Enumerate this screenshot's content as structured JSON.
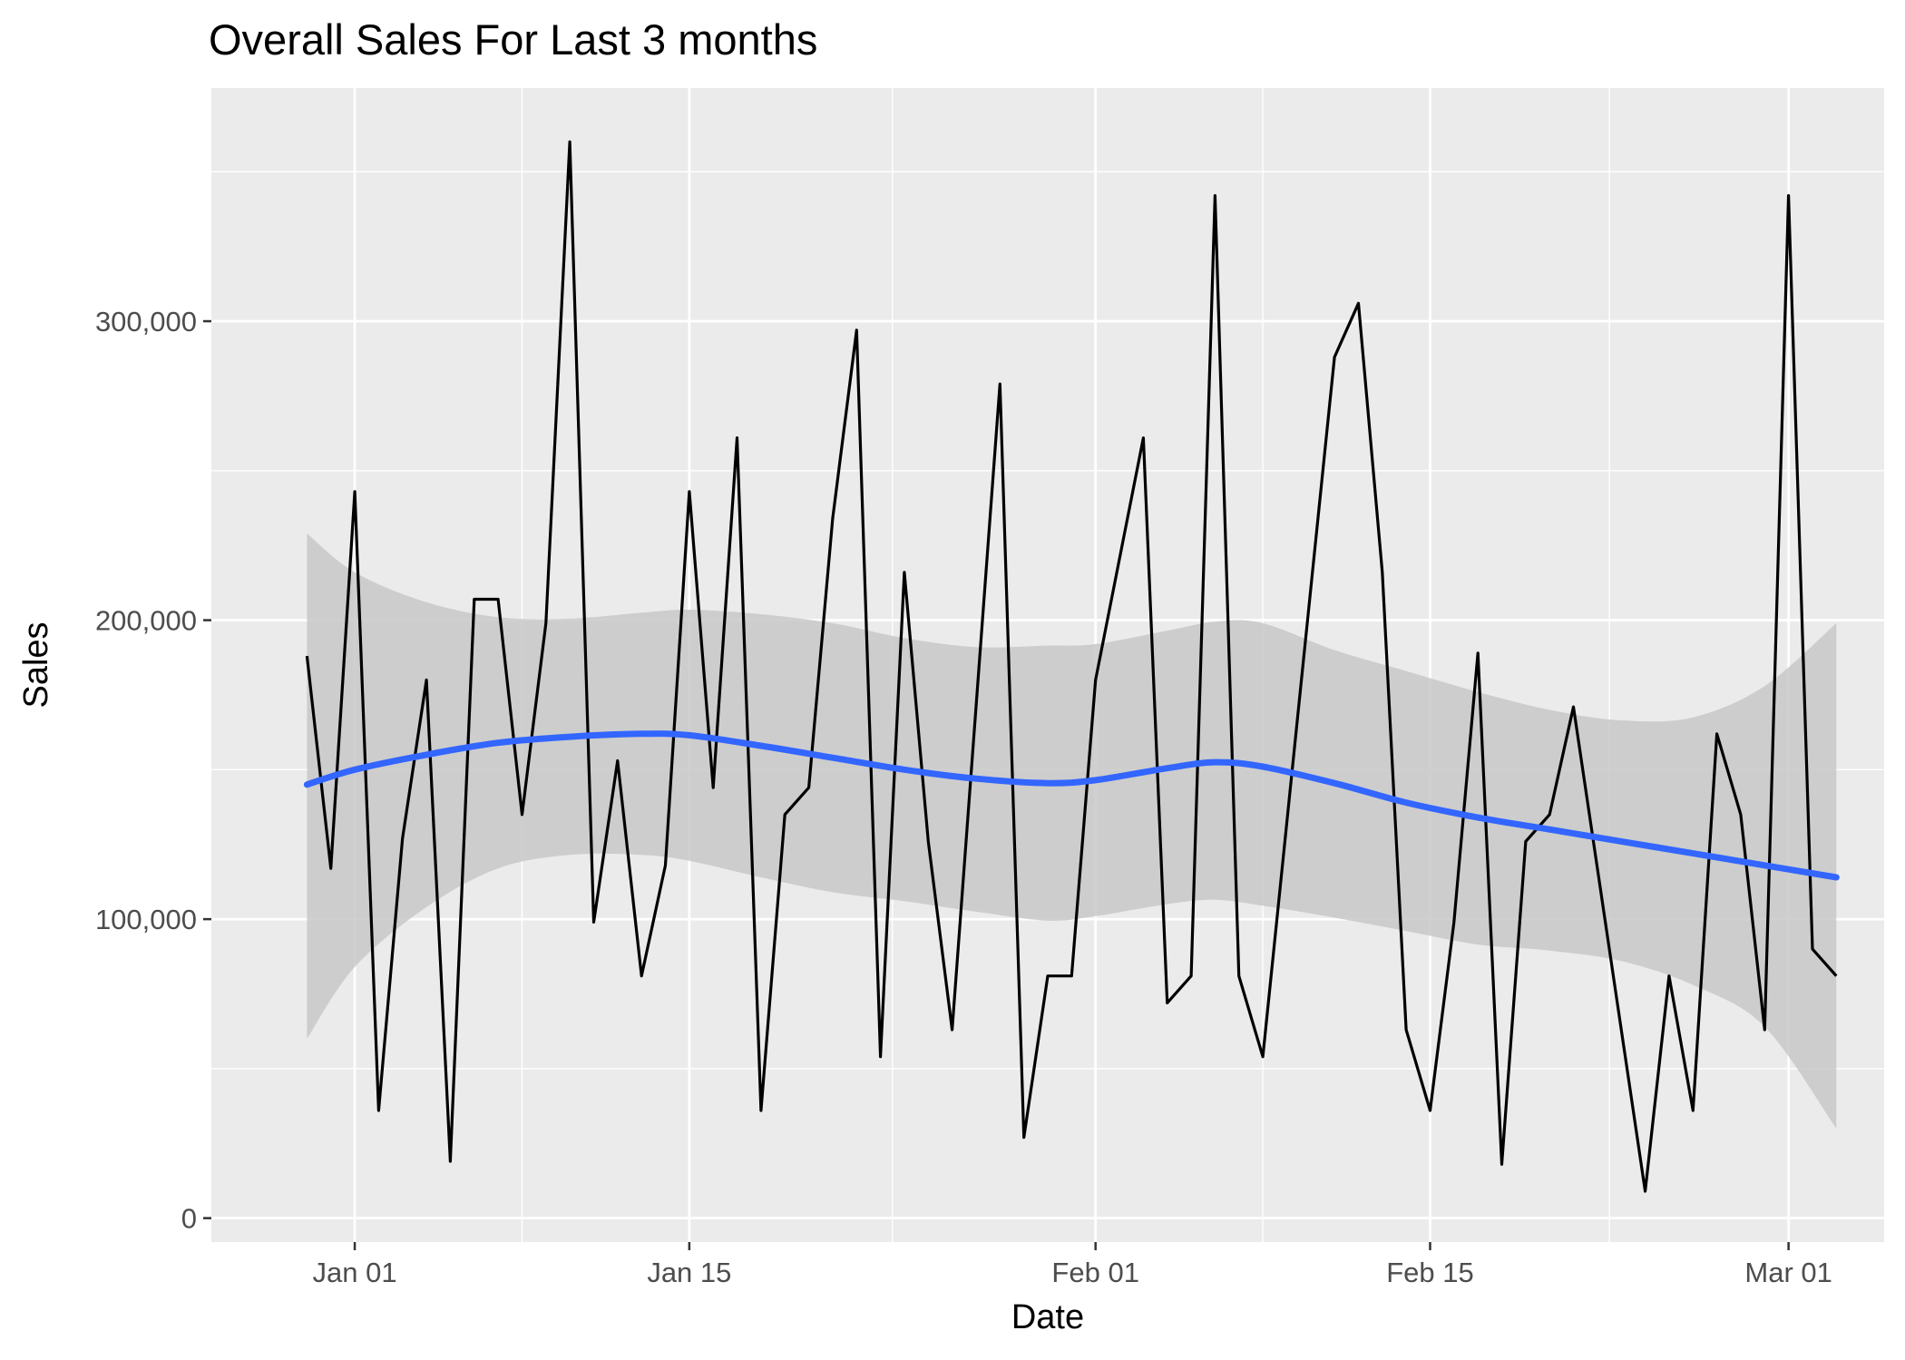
{
  "chart_data": {
    "type": "line",
    "title": "Overall Sales For Last 3 months",
    "xlabel": "Date",
    "ylabel": "Sales",
    "x_ticks": [
      {
        "date": "2020-01-01",
        "label": "Jan 01"
      },
      {
        "date": "2020-01-15",
        "label": "Jan 15"
      },
      {
        "date": "2020-02-01",
        "label": "Feb 01"
      },
      {
        "date": "2020-02-15",
        "label": "Feb 15"
      },
      {
        "date": "2020-03-01",
        "label": "Mar 01"
      }
    ],
    "y_ticks": [
      {
        "value": 0,
        "label": "0"
      },
      {
        "value": 100000,
        "label": "100,000"
      },
      {
        "value": 200000,
        "label": "200,000"
      },
      {
        "value": 300000,
        "label": "300,000"
      }
    ],
    "xlim": [
      "2019-12-26",
      "2020-03-05"
    ],
    "ylim": [
      -8000,
      378000
    ],
    "grid": true,
    "colors": {
      "panel": "#ebebeb",
      "grid": "#ffffff",
      "line": "#000000",
      "smooth": "#3366ff",
      "band": "#c8c8c8"
    },
    "series": [
      {
        "x": [
          "2019-12-30",
          "2019-12-31",
          "2020-01-01",
          "2020-01-02",
          "2020-01-03",
          "2020-01-04",
          "2020-01-05",
          "2020-01-06",
          "2020-01-07",
          "2020-01-08",
          "2020-01-09",
          "2020-01-10",
          "2020-01-11",
          "2020-01-12",
          "2020-01-13",
          "2020-01-14",
          "2020-01-15",
          "2020-01-16",
          "2020-01-17",
          "2020-01-18",
          "2020-01-19",
          "2020-01-20",
          "2020-01-21",
          "2020-01-22",
          "2020-01-23",
          "2020-01-24",
          "2020-01-25",
          "2020-01-26",
          "2020-01-28",
          "2020-01-29",
          "2020-01-30",
          "2020-01-31",
          "2020-02-01",
          "2020-02-03",
          "2020-02-04",
          "2020-02-05",
          "2020-02-06",
          "2020-02-07",
          "2020-02-08",
          "2020-02-11",
          "2020-02-12",
          "2020-02-13",
          "2020-02-14",
          "2020-02-15",
          "2020-02-16",
          "2020-02-17",
          "2020-02-18",
          "2020-02-19",
          "2020-02-20",
          "2020-02-21",
          "2020-02-22",
          "2020-02-24",
          "2020-02-25",
          "2020-02-26",
          "2020-02-27",
          "2020-02-28",
          "2020-02-29",
          "2020-03-01",
          "2020-03-02",
          "2020-03-03"
        ],
        "values": [
          188000,
          117000,
          243000,
          36000,
          127000,
          180000,
          19000,
          207000,
          207000,
          135000,
          199000,
          360000,
          99000,
          153000,
          81000,
          118000,
          243000,
          144000,
          261000,
          36000,
          135000,
          144000,
          234000,
          297000,
          54000,
          216000,
          126000,
          63000,
          279000,
          27000,
          81000,
          81000,
          180000,
          261000,
          72000,
          81000,
          342000,
          81000,
          54000,
          288000,
          306000,
          216000,
          63000,
          36000,
          99000,
          189000,
          18000,
          126000,
          135000,
          171000,
          117000,
          9000,
          81000,
          36000,
          162000,
          135000,
          63000,
          342000,
          90000,
          81000
        ]
      }
    ],
    "smooth": {
      "x": [
        "2019-12-30",
        "2020-01-01",
        "2020-01-04",
        "2020-01-07",
        "2020-01-10",
        "2020-01-13",
        "2020-01-15",
        "2020-01-18",
        "2020-01-21",
        "2020-01-24",
        "2020-01-27",
        "2020-01-30",
        "2020-02-01",
        "2020-02-04",
        "2020-02-06",
        "2020-02-08",
        "2020-02-11",
        "2020-02-14",
        "2020-02-17",
        "2020-02-20",
        "2020-02-23",
        "2020-02-26",
        "2020-02-29",
        "2020-03-03"
      ],
      "fit": [
        145000,
        150000,
        155000,
        159000,
        161000,
        162000,
        161500,
        158000,
        154000,
        150000,
        147000,
        145500,
        146500,
        150500,
        152500,
        151000,
        145500,
        139000,
        134000,
        130000,
        126000,
        122000,
        118000,
        114000
      ],
      "upper": [
        229000,
        216000,
        206000,
        201000,
        200500,
        202500,
        203500,
        202000,
        199000,
        194000,
        191000,
        191500,
        192000,
        196500,
        199500,
        199000,
        190000,
        183000,
        176000,
        170000,
        166500,
        167500,
        178000,
        199000
      ],
      "lower": [
        60000,
        84000,
        104000,
        117000,
        121500,
        121500,
        119500,
        114000,
        109000,
        106000,
        102500,
        99500,
        101000,
        105000,
        106500,
        104500,
        100500,
        96000,
        91500,
        89500,
        86000,
        78000,
        64000,
        30000
      ]
    }
  }
}
